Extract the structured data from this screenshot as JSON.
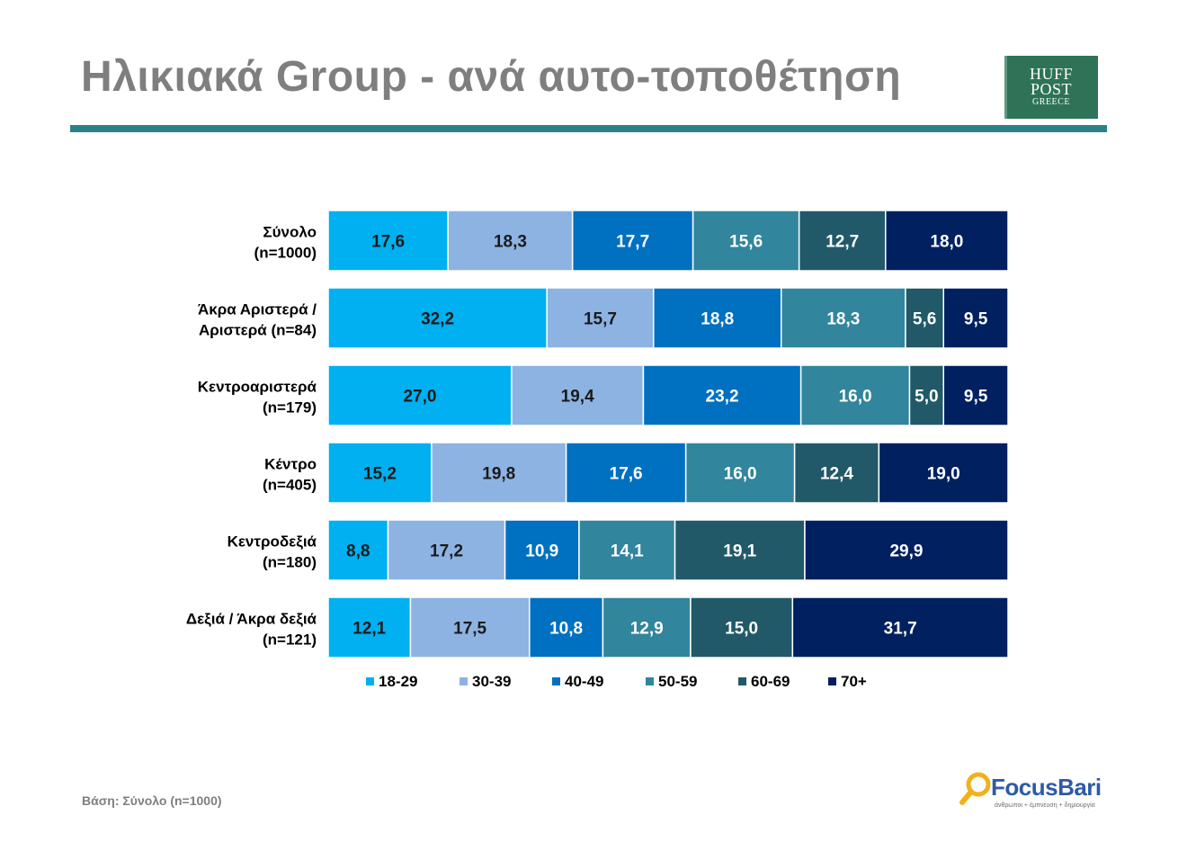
{
  "header": {
    "title": "Ηλικιακά Group - ανά αυτο-τοποθέτηση",
    "logo": {
      "line1": "HUFF",
      "line2": "POST",
      "line3": "GREECE"
    }
  },
  "footer": {
    "basis": "Βάση: Σύνολο (n=1000)",
    "brand": "FocusBari",
    "tagline": "άνθρωποι + έμπνευση + δημιουργία"
  },
  "colors": {
    "title": "#7f7f7f",
    "rule": "#2a8288",
    "logo_bg": "#2e7358",
    "series": [
      "#00b0f0",
      "#8db3e2",
      "#0070c0",
      "#31859c",
      "#215968",
      "#002060"
    ]
  },
  "chart_data": {
    "type": "bar",
    "orientation": "horizontal",
    "stacked": true,
    "title": "",
    "xlim": [
      0,
      100
    ],
    "legend_position": "bottom",
    "categories": [
      [
        "Σύνολο",
        "(n=1000)"
      ],
      [
        "Άκρα Αριστερά /",
        "Αριστερά (n=84)"
      ],
      [
        "Κεντροαριστερά",
        "(n=179)"
      ],
      [
        "Κέντρο",
        "(n=405)"
      ],
      [
        "Κεντροδεξιά",
        "(n=180)"
      ],
      [
        "Δεξιά / Άκρα δεξιά",
        "(n=121)"
      ]
    ],
    "series": [
      {
        "name": "18-29",
        "values": [
          17.6,
          32.2,
          27.0,
          15.2,
          8.8,
          12.1
        ],
        "labels": [
          "17,6",
          "32,2",
          "27,0",
          "15,2",
          "8,8",
          "12,1"
        ]
      },
      {
        "name": "30-39",
        "values": [
          18.3,
          15.7,
          19.4,
          19.8,
          17.2,
          17.5
        ],
        "labels": [
          "18,3",
          "15,7",
          "19,4",
          "19,8",
          "17,2",
          "17,5"
        ]
      },
      {
        "name": "40-49",
        "values": [
          17.7,
          18.8,
          23.2,
          17.6,
          10.9,
          10.8
        ],
        "labels": [
          "17,7",
          "18,8",
          "23,2",
          "17,6",
          "10,9",
          "10,8"
        ]
      },
      {
        "name": "50-59",
        "values": [
          15.6,
          18.3,
          16.0,
          16.0,
          14.1,
          12.9
        ],
        "labels": [
          "15,6",
          "18,3",
          "16,0",
          "16,0",
          "14,1",
          "12,9"
        ]
      },
      {
        "name": "60-69",
        "values": [
          12.7,
          5.6,
          5.0,
          12.4,
          19.1,
          15.0
        ],
        "labels": [
          "12,7",
          "5,6",
          "5,0",
          "12,4",
          "19,1",
          "15,0"
        ]
      },
      {
        "name": "70+",
        "values": [
          18.0,
          9.5,
          9.5,
          19.0,
          29.9,
          31.7
        ],
        "labels": [
          "18,0",
          "9,5",
          "9,5",
          "19,0",
          "29,9",
          "31,7"
        ]
      }
    ]
  }
}
